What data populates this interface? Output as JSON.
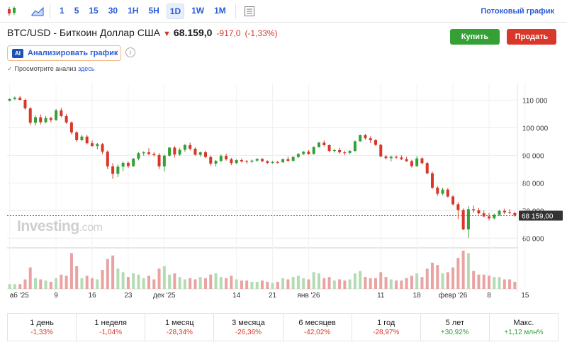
{
  "toolbar": {
    "timeframes": [
      "1",
      "5",
      "15",
      "30",
      "1H",
      "5H",
      "1D",
      "1W",
      "1M"
    ],
    "active_timeframe": "1D",
    "stream_link": "Потоковый график",
    "icons": [
      "candlestick-icon",
      "area-chart-icon",
      "table-icon"
    ]
  },
  "header": {
    "title": "BTC/USD - Биткоин Доллар США",
    "price": "68.159,0",
    "change": "-917,0",
    "change_pct": "(-1,33%)",
    "buy_label": "Купить",
    "sell_label": "Продать",
    "analyze_badge": "AI",
    "analyze_label": "Анализировать график",
    "info_glyph": "i",
    "note_check": "✓",
    "note_text": "Просмотрите анализ",
    "note_link": "здесь"
  },
  "watermark": {
    "brand": "Investing",
    "suffix": ".com"
  },
  "colors": {
    "up": "#34a035",
    "down": "#d8372b",
    "vol_up": "#b4dcb4",
    "vol_down": "#eaa2a2",
    "accent": "#2a5bd7"
  },
  "chart_data": {
    "type": "candlestick",
    "y_ticks": [
      "110 000",
      "100 000",
      "90 000",
      "80 000",
      "70 000",
      "60 000"
    ],
    "y_tick_values": [
      110000,
      100000,
      90000,
      80000,
      70000,
      60000
    ],
    "ylim": [
      56500,
      116000
    ],
    "x_tick_labels": [
      "аб '25",
      "9",
      "16",
      "23",
      "дек '25",
      "14",
      "21",
      "янв '26",
      "11",
      "18",
      "февр '26",
      "8",
      "15"
    ],
    "x_tick_indices": [
      0,
      9,
      16,
      23,
      30,
      44,
      51,
      58,
      72,
      79,
      86,
      93,
      100
    ],
    "current_price_label": "68 159,00",
    "last_price": 68159,
    "candles": [
      [
        109800,
        110600,
        109500,
        110400,
        4
      ],
      [
        110400,
        111300,
        110000,
        110900,
        4
      ],
      [
        110900,
        111500,
        109900,
        110100,
        4
      ],
      [
        110100,
        110500,
        106500,
        107000,
        8
      ],
      [
        107000,
        107500,
        101000,
        101800,
        18
      ],
      [
        101800,
        104500,
        100800,
        103800,
        9
      ],
      [
        103800,
        104800,
        101200,
        102000,
        8
      ],
      [
        102000,
        104200,
        101600,
        103500,
        7
      ],
      [
        103500,
        104000,
        102000,
        102800,
        6
      ],
      [
        102800,
        106800,
        102500,
        106300,
        9
      ],
      [
        106300,
        107200,
        103800,
        104200,
        12
      ],
      [
        104200,
        105000,
        101400,
        101900,
        11
      ],
      [
        101900,
        102300,
        97600,
        98300,
        30
      ],
      [
        98300,
        98800,
        94900,
        95500,
        19
      ],
      [
        95500,
        97500,
        95100,
        96800,
        9
      ],
      [
        96800,
        97400,
        94000,
        94400,
        11
      ],
      [
        94400,
        95400,
        93100,
        93400,
        9
      ],
      [
        93400,
        94500,
        92200,
        94100,
        8
      ],
      [
        94100,
        94500,
        90500,
        91300,
        16
      ],
      [
        91300,
        91800,
        85000,
        86000,
        25
      ],
      [
        86000,
        87200,
        81500,
        83300,
        28
      ],
      [
        83300,
        86700,
        82100,
        85900,
        17
      ],
      [
        85900,
        87800,
        84300,
        87300,
        14
      ],
      [
        87300,
        87800,
        85400,
        86100,
        10
      ],
      [
        86100,
        89100,
        85800,
        88800,
        13
      ],
      [
        88800,
        91200,
        88200,
        90800,
        12
      ],
      [
        90800,
        91500,
        89900,
        91100,
        9
      ],
      [
        91100,
        92600,
        90000,
        90500,
        11
      ],
      [
        90500,
        91200,
        89500,
        90100,
        8
      ],
      [
        90100,
        90800,
        85100,
        86000,
        17
      ],
      [
        86000,
        90300,
        84200,
        89900,
        19
      ],
      [
        89900,
        93000,
        89500,
        92800,
        12
      ],
      [
        92800,
        93400,
        89200,
        90300,
        13
      ],
      [
        90300,
        92700,
        89800,
        92000,
        10
      ],
      [
        92000,
        94200,
        91300,
        93700,
        8
      ],
      [
        93700,
        94600,
        91800,
        92400,
        9
      ],
      [
        92400,
        92900,
        89900,
        90200,
        8
      ],
      [
        90200,
        91400,
        89500,
        91100,
        10
      ],
      [
        91100,
        91700,
        88900,
        89400,
        9
      ],
      [
        89400,
        89900,
        86300,
        87000,
        12
      ],
      [
        87000,
        88300,
        85900,
        88000,
        13
      ],
      [
        88000,
        90400,
        87600,
        89800,
        10
      ],
      [
        89800,
        90600,
        88100,
        88600,
        9
      ],
      [
        88600,
        89100,
        86500,
        87200,
        11
      ],
      [
        87200,
        88600,
        86900,
        88300,
        8
      ],
      [
        88300,
        88900,
        87400,
        87800,
        7
      ],
      [
        87800,
        88300,
        87000,
        87700,
        7
      ],
      [
        87700,
        88500,
        87200,
        88100,
        6
      ],
      [
        88100,
        88900,
        87700,
        88700,
        6
      ],
      [
        88700,
        89000,
        87500,
        87900,
        7
      ],
      [
        87900,
        88200,
        86800,
        87300,
        6
      ],
      [
        87300,
        88000,
        87000,
        87600,
        5
      ],
      [
        87600,
        88000,
        87000,
        87500,
        6
      ],
      [
        87500,
        88900,
        87300,
        88600,
        9
      ],
      [
        88600,
        89500,
        87700,
        88000,
        8
      ],
      [
        88000,
        89700,
        87800,
        89400,
        10
      ],
      [
        89400,
        90800,
        89000,
        90500,
        11
      ],
      [
        90500,
        91600,
        90100,
        91300,
        9
      ],
      [
        91300,
        91900,
        90200,
        90500,
        8
      ],
      [
        90500,
        93300,
        90300,
        93000,
        14
      ],
      [
        93000,
        94900,
        92800,
        94600,
        13
      ],
      [
        94600,
        95400,
        93200,
        93700,
        9
      ],
      [
        93700,
        94000,
        91100,
        91600,
        10
      ],
      [
        91600,
        92300,
        91000,
        91900,
        7
      ],
      [
        91900,
        92800,
        90600,
        91100,
        8
      ],
      [
        91100,
        91700,
        90100,
        90900,
        7
      ],
      [
        90900,
        91900,
        90400,
        91600,
        8
      ],
      [
        91600,
        95400,
        91300,
        95100,
        13
      ],
      [
        95100,
        97500,
        94900,
        97300,
        15
      ],
      [
        97300,
        97800,
        95600,
        96200,
        10
      ],
      [
        96200,
        96900,
        94500,
        95500,
        9
      ],
      [
        95500,
        95900,
        93400,
        93800,
        9
      ],
      [
        93800,
        94200,
        89400,
        89600,
        14
      ],
      [
        89600,
        90100,
        88500,
        89000,
        10
      ],
      [
        89000,
        89900,
        87800,
        89500,
        8
      ],
      [
        89500,
        89900,
        88700,
        89200,
        7
      ],
      [
        89200,
        90000,
        88300,
        88600,
        7
      ],
      [
        88600,
        89500,
        87600,
        87900,
        9
      ],
      [
        87900,
        88400,
        85600,
        86100,
        11
      ],
      [
        86100,
        89800,
        85800,
        88900,
        13
      ],
      [
        88900,
        89400,
        86700,
        87200,
        10
      ],
      [
        87200,
        87600,
        83100,
        83500,
        17
      ],
      [
        83500,
        84100,
        77800,
        78300,
        22
      ],
      [
        78300,
        78900,
        75300,
        76100,
        20
      ],
      [
        76100,
        78300,
        75600,
        77600,
        13
      ],
      [
        77600,
        78100,
        74700,
        75100,
        14
      ],
      [
        75100,
        75600,
        71800,
        72300,
        18
      ],
      [
        72300,
        73100,
        66900,
        70200,
        26
      ],
      [
        70200,
        70800,
        62900,
        63200,
        32
      ],
      [
        63200,
        71600,
        60100,
        70500,
        30
      ],
      [
        70500,
        71800,
        69200,
        70100,
        15
      ],
      [
        70100,
        70900,
        68600,
        69000,
        12
      ],
      [
        69000,
        70000,
        67600,
        67900,
        12
      ],
      [
        67900,
        69100,
        66400,
        67200,
        11
      ],
      [
        67200,
        68900,
        66800,
        68500,
        10
      ],
      [
        68500,
        70300,
        68100,
        69900,
        10
      ],
      [
        69900,
        70700,
        68800,
        69300,
        8
      ],
      [
        69300,
        70500,
        68800,
        69100,
        8
      ],
      [
        69100,
        69600,
        67800,
        68200,
        6
      ]
    ]
  },
  "performance": [
    {
      "label": "1 день",
      "value": "-1,33%",
      "dir": "neg"
    },
    {
      "label": "1 неделя",
      "value": "-1,04%",
      "dir": "neg"
    },
    {
      "label": "1 месяц",
      "value": "-28,34%",
      "dir": "neg"
    },
    {
      "label": "3 месяца",
      "value": "-26,36%",
      "dir": "neg"
    },
    {
      "label": "6 месяцев",
      "value": "-42,02%",
      "dir": "neg"
    },
    {
      "label": "1 год",
      "value": "-28,97%",
      "dir": "neg"
    },
    {
      "label": "5 лет",
      "value": "+30,92%",
      "dir": "pos"
    },
    {
      "label": "Макс.",
      "value": "+1,12 млн%",
      "dir": "pos"
    }
  ]
}
